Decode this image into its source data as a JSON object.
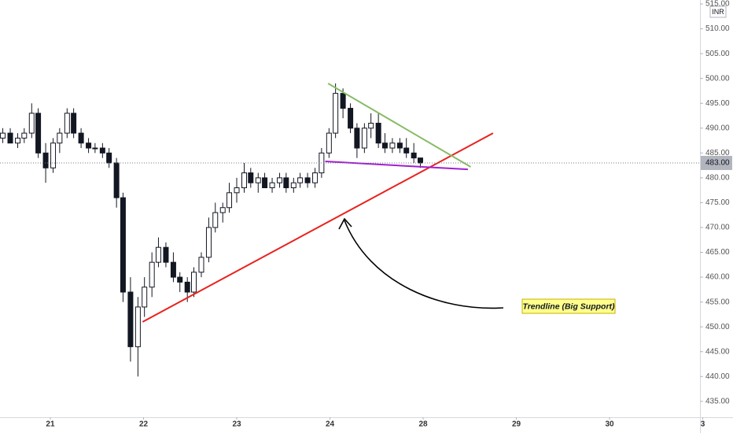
{
  "chart_data": {
    "type": "candlestick",
    "currency": "INR",
    "annotation": "Trendline (Big Support)",
    "x": [
      20.49,
      20.57,
      20.65,
      20.72,
      20.8,
      20.87,
      20.95,
      21.03,
      21.1,
      21.18,
      21.25,
      21.33,
      21.41,
      21.48,
      21.56,
      21.63,
      21.71,
      21.78,
      21.86,
      21.94,
      22.01,
      22.09,
      22.16,
      22.24,
      22.32,
      22.39,
      22.47,
      22.54,
      22.62,
      22.7,
      22.77,
      22.85,
      22.92,
      23.0,
      23.08,
      23.15,
      23.23,
      23.3,
      23.38,
      23.46,
      23.53,
      23.61,
      23.68,
      23.76,
      23.84,
      23.91,
      23.99,
      24.06,
      24.14,
      24.22,
      24.29,
      24.37,
      24.44,
      24.52,
      24.59,
      24.67,
      24.75,
      24.82,
      24.9,
      24.97
    ],
    "open": [
      488,
      489,
      487,
      488,
      489,
      493,
      485,
      482,
      487,
      489,
      493,
      489,
      487,
      486,
      486,
      485,
      483,
      476,
      457,
      446,
      454,
      458,
      463,
      466,
      463,
      460,
      459,
      457,
      461,
      464,
      470,
      473,
      474,
      477,
      478,
      481,
      479,
      480,
      478,
      479,
      480,
      478,
      479,
      480,
      479,
      481,
      485,
      489,
      497,
      494,
      490,
      486,
      490,
      491,
      487,
      486,
      487,
      486,
      485,
      484
    ],
    "high": [
      490,
      490,
      489,
      490,
      495,
      494,
      487,
      488,
      490,
      494,
      494,
      490,
      488,
      487,
      487,
      486,
      484,
      477,
      460,
      456,
      460,
      465,
      468,
      467,
      465,
      461,
      460,
      462,
      465,
      472,
      475,
      475,
      479,
      480,
      483,
      482,
      481,
      481,
      480,
      481,
      481,
      480,
      481,
      481,
      482,
      486,
      490,
      499,
      498,
      495,
      491,
      491,
      493,
      493,
      489,
      488,
      488,
      488,
      487,
      484
    ],
    "low": [
      487,
      487,
      486,
      487,
      488,
      484,
      479,
      481,
      485,
      488,
      488,
      486,
      485,
      485,
      484,
      482,
      474,
      455,
      443,
      440,
      452,
      456,
      462,
      462,
      459,
      457,
      455,
      456,
      460,
      463,
      469,
      471,
      473,
      475,
      477,
      478,
      477,
      478,
      477,
      478,
      477,
      477,
      478,
      478,
      478,
      480,
      484,
      488,
      492,
      489,
      484,
      485,
      488,
      486,
      485,
      485,
      485,
      484,
      483,
      482
    ],
    "close": [
      489,
      487,
      488,
      489,
      493,
      485,
      482,
      487,
      489,
      493,
      489,
      487,
      486,
      486,
      485,
      483,
      476,
      457,
      446,
      454,
      458,
      463,
      466,
      463,
      460,
      459,
      457,
      461,
      464,
      470,
      473,
      474,
      477,
      478,
      481,
      479,
      480,
      478,
      479,
      480,
      478,
      479,
      480,
      479,
      481,
      485,
      489,
      497,
      494,
      490,
      486,
      490,
      491,
      487,
      486,
      487,
      486,
      485,
      484,
      483
    ],
    "up_color": "#ffffff",
    "down_color": "#131722",
    "lines": [
      {
        "color": "#e8221d",
        "x": [
          21.99,
          25.75
        ],
        "y": [
          451,
          489
        ]
      },
      {
        "color": "#88bb66",
        "x": [
          23.98,
          25.51
        ],
        "y": [
          499,
          482.2
        ]
      },
      {
        "color": "#a020d0",
        "x": [
          23.95,
          25.48
        ],
        "y": [
          483.3,
          481.7
        ]
      }
    ],
    "last_price": {
      "value": 483,
      "label": "483.00"
    },
    "xlim": [
      20.46,
      27.97
    ],
    "xticks": [
      21,
      22,
      23,
      24,
      {
        "value": 25,
        "label": "28"
      },
      {
        "value": 26,
        "label": "29"
      },
      {
        "value": 27,
        "label": "30"
      },
      {
        "value": 28,
        "label": "3"
      }
    ],
    "ylim": [
      431.8,
      515.8
    ],
    "yticks": [
      {
        "value": 435,
        "label": "435.00"
      },
      {
        "value": 440,
        "label": "440.00"
      },
      {
        "value": 445,
        "label": "445.00"
      },
      {
        "value": 450,
        "label": "450.00"
      },
      {
        "value": 455,
        "label": "455.00"
      },
      {
        "value": 460,
        "label": "460.00"
      },
      {
        "value": 465,
        "label": "465.00"
      },
      {
        "value": 470,
        "label": "470.00"
      },
      {
        "value": 475,
        "label": "475.00"
      },
      {
        "value": 480,
        "label": "480.00"
      },
      {
        "value": 485,
        "label": "485.00"
      },
      {
        "value": 490,
        "label": "490.00"
      },
      {
        "value": 495,
        "label": "495.00"
      },
      {
        "value": 500,
        "label": "500.00"
      },
      {
        "value": 505,
        "label": "505.00"
      },
      {
        "value": 510,
        "label": "510.00"
      },
      {
        "value": 515,
        "label": "515.00"
      }
    ],
    "grid": false
  }
}
